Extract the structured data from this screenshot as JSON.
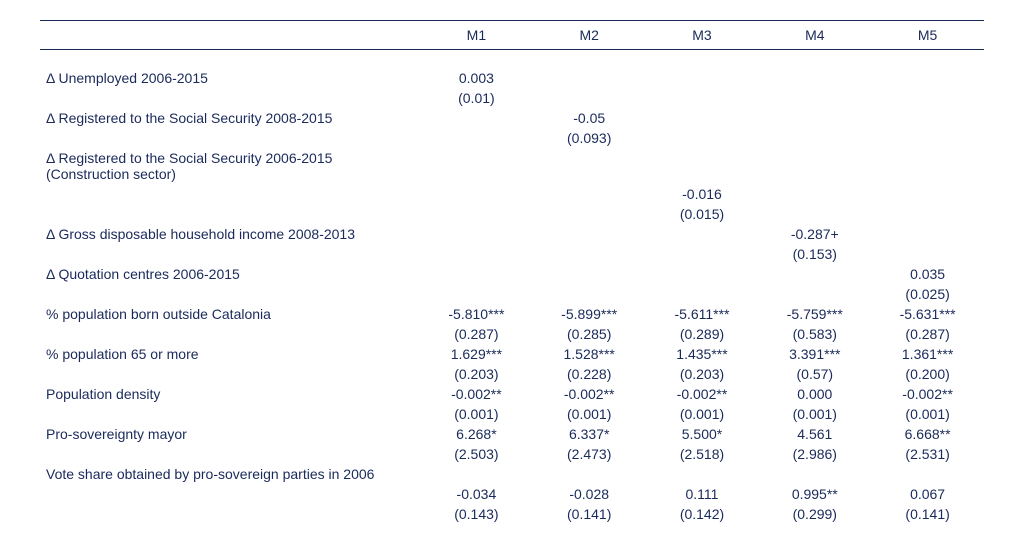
{
  "table": {
    "columns": [
      "M1",
      "M2",
      "M3",
      "M4",
      "M5"
    ],
    "rows": [
      {
        "label": "Δ Unemployed 2006-2015",
        "coef": [
          "0.003",
          "",
          "",
          "",
          ""
        ],
        "se": [
          "(0.01)",
          "",
          "",
          "",
          ""
        ]
      },
      {
        "label": "Δ Registered to the Social Security 2008-2015",
        "coef": [
          "",
          "-0.05",
          "",
          "",
          ""
        ],
        "se": [
          "",
          "(0.093)",
          "",
          "",
          ""
        ]
      },
      {
        "label": "Δ Registered to the Social Security 2006-2015 (Construction sector)",
        "coef": [
          "",
          "",
          "-0.016",
          "",
          ""
        ],
        "se": [
          "",
          "",
          "(0.015)",
          "",
          ""
        ],
        "label_spans_two": true
      },
      {
        "label": "Δ Gross disposable household income 2008-2013",
        "coef": [
          "",
          "",
          "",
          "-0.287+",
          ""
        ],
        "se": [
          "",
          "",
          "",
          "(0.153)",
          ""
        ]
      },
      {
        "label": "Δ Quotation centres 2006-2015",
        "coef": [
          "",
          "",
          "",
          "",
          "0.035"
        ],
        "se": [
          "",
          "",
          "",
          "",
          "(0.025)"
        ]
      },
      {
        "label": "% population born outside Catalonia",
        "coef": [
          "-5.810***",
          "-5.899***",
          "-5.611***",
          "-5.759***",
          "-5.631***"
        ],
        "se": [
          "(0.287)",
          "(0.285)",
          "(0.289)",
          "(0.583)",
          "(0.287)"
        ]
      },
      {
        "label": "% population 65 or more",
        "coef": [
          "1.629***",
          "1.528***",
          "1.435***",
          "3.391***",
          "1.361***"
        ],
        "se": [
          "(0.203)",
          "(0.228)",
          "(0.203)",
          "(0.57)",
          "(0.200)"
        ]
      },
      {
        "label": "Population density",
        "coef": [
          "-0.002**",
          "-0.002**",
          "-0.002**",
          "0.000",
          "-0.002**"
        ],
        "se": [
          "(0.001)",
          "(0.001)",
          "(0.001)",
          "(0.001)",
          "(0.001)"
        ]
      },
      {
        "label": "Pro-sovereignty mayor",
        "coef": [
          "6.268*",
          "6.337*",
          "5.500*",
          "4.561",
          "6.668**"
        ],
        "se": [
          "(2.503)",
          "(2.473)",
          "(2.518)",
          "(2.986)",
          "(2.531)"
        ]
      },
      {
        "label": "Vote share obtained by pro-sovereign parties in 2006",
        "coef": [
          "-0.034",
          "-0.028",
          "0.111",
          "0.995**",
          "0.067"
        ],
        "se": [
          "(0.143)",
          "(0.141)",
          "(0.142)",
          "(0.299)",
          "(0.141)"
        ],
        "label_spans_two": true
      }
    ]
  },
  "style": {
    "text_color": "#1a2a5a",
    "border_color": "#1a2a5a",
    "font_size_pt": 14,
    "font_family": "Arial"
  }
}
